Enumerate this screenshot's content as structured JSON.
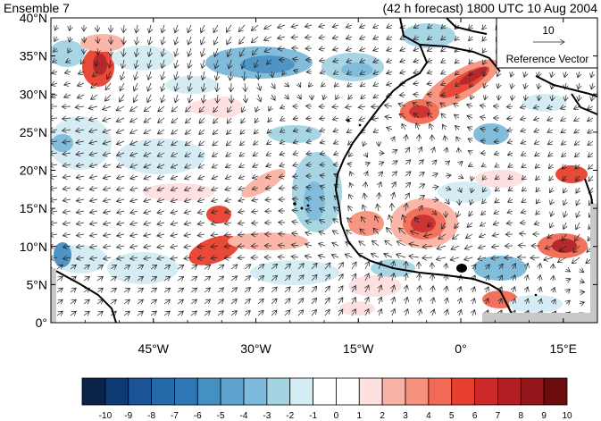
{
  "header": {
    "left_title": "Ensemble 7",
    "right_title": "(42 h forecast) 1800 UTC 10 Aug 2004"
  },
  "map": {
    "lat_labels": [
      "40°N",
      "35°N",
      "30°N",
      "25°N",
      "20°N",
      "15°N",
      "10°N",
      "5°N",
      "0°"
    ],
    "lon_labels": [
      "45°W",
      "30°W",
      "15°W",
      "0°",
      "15°E"
    ],
    "lon_values": [
      -45,
      -30,
      -15,
      0,
      15
    ],
    "lat_values": [
      40,
      35,
      30,
      25,
      20,
      15,
      10,
      5,
      0
    ]
  },
  "reference_vector": {
    "magnitude_label": "10",
    "caption": "Reference Vector"
  },
  "colorbar": {
    "labels": [
      "-10",
      "-9",
      "-8",
      "-7",
      "-6",
      "-5",
      "-4",
      "-3",
      "-2",
      "-1",
      "0",
      "1",
      "2",
      "3",
      "4",
      "5",
      "6",
      "7",
      "8",
      "9",
      "10"
    ],
    "colors": [
      "#0b2349",
      "#0d3a73",
      "#1a5496",
      "#2469a8",
      "#2d77b6",
      "#4590c3",
      "#5fa4cf",
      "#7cb9da",
      "#a4d3e2",
      "#d4ecf4",
      "#ffffff",
      "#ffffff",
      "#fde0df",
      "#f9b3a5",
      "#f6917d",
      "#f26a55",
      "#e7402f",
      "#cc2a2a",
      "#b21e22",
      "#921519",
      "#6d0c0e"
    ]
  }
}
